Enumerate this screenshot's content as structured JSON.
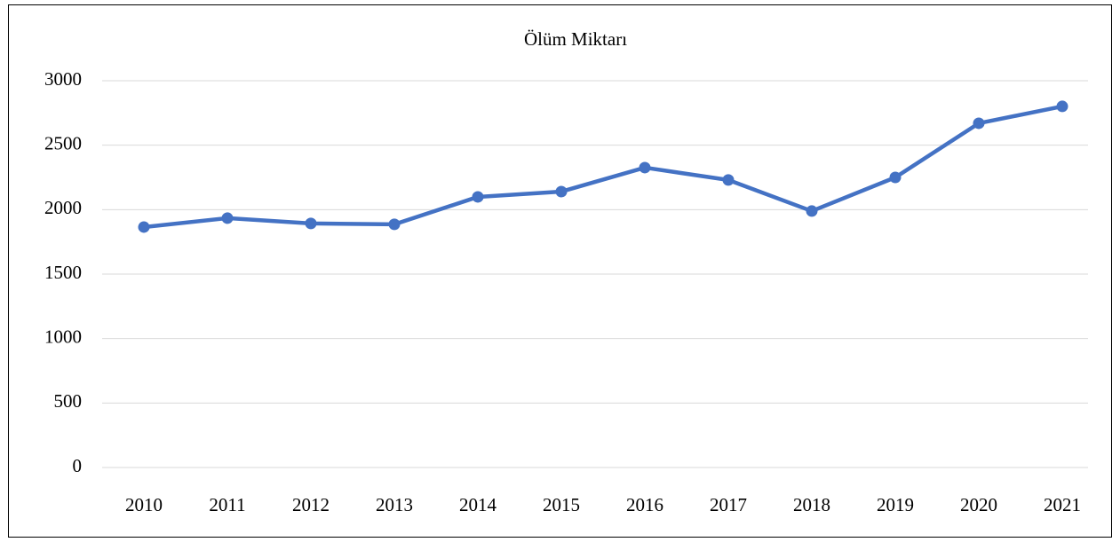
{
  "chart_data": {
    "type": "line",
    "title": "Ölüm Miktarı",
    "categories": [
      "2010",
      "2011",
      "2012",
      "2013",
      "2014",
      "2015",
      "2016",
      "2017",
      "2018",
      "2019",
      "2020",
      "2021"
    ],
    "series": [
      {
        "name": "Ölüm Miktarı",
        "color": "#4472c4",
        "values": [
          1865,
          1934,
          1893,
          1886,
          2099,
          2140,
          2326,
          2230,
          1989,
          2250,
          2670,
          2801
        ]
      }
    ],
    "ylim": [
      0,
      3000
    ],
    "yticks": [
      0,
      500,
      1000,
      1500,
      2000,
      2500,
      3000
    ],
    "grid": true,
    "legend": false
  }
}
